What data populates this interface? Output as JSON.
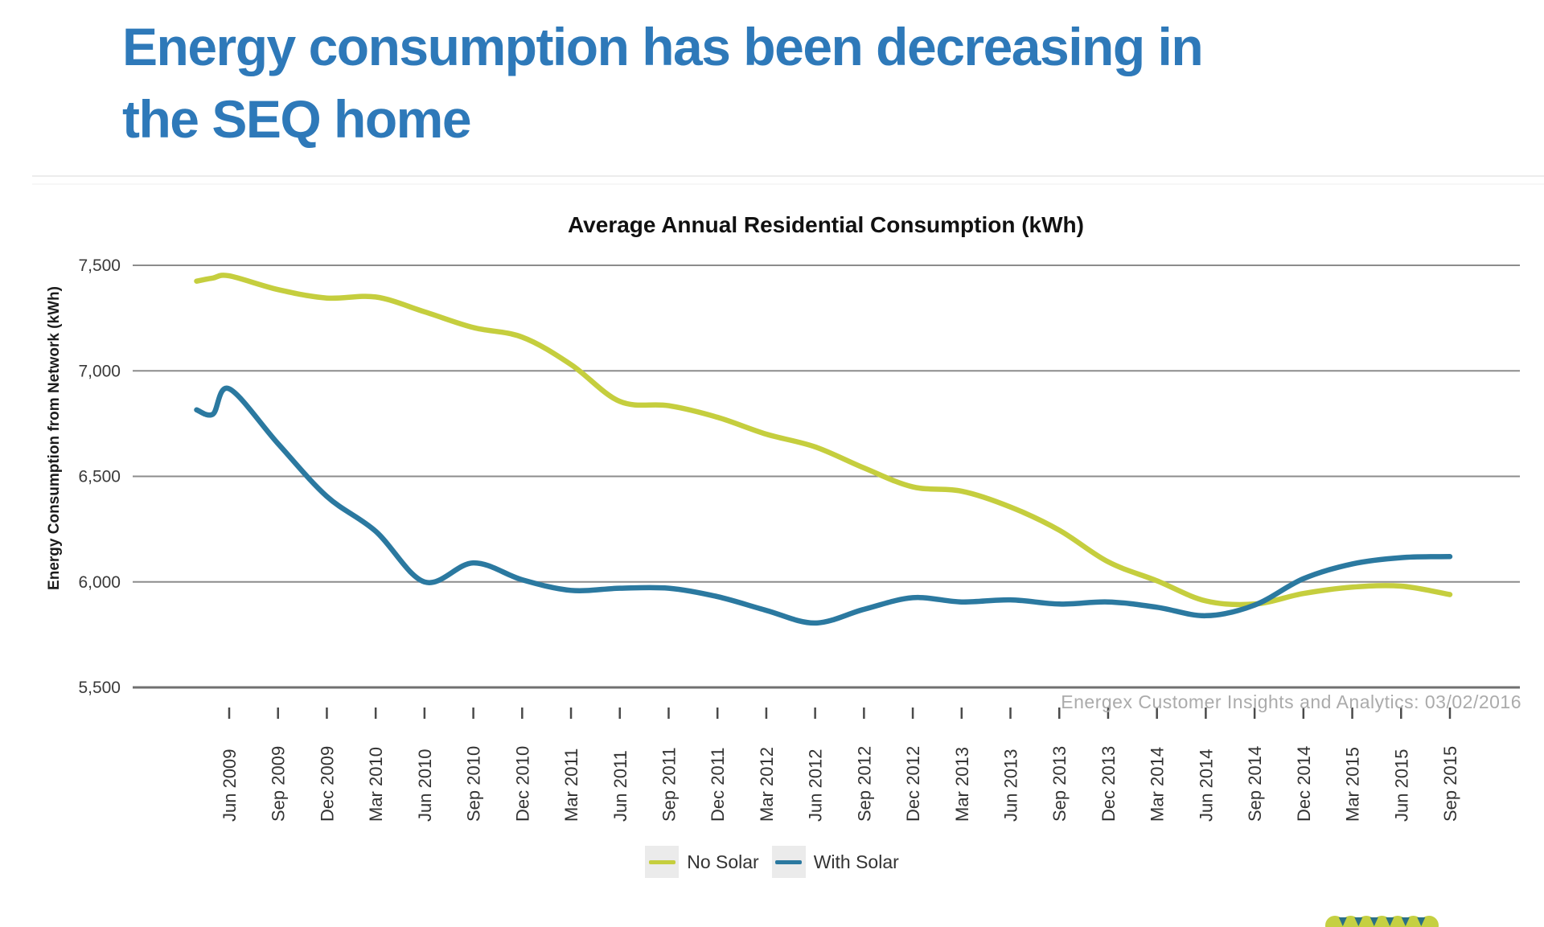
{
  "page": {
    "title_line1": "Energy consumption has been decreasing in",
    "title_line2": "the SEQ home",
    "title_color": "#2E79B9"
  },
  "watermark": "Energex Customer Insights and Analytics: 03/02/2016",
  "chart_data": {
    "type": "line",
    "title": "Average Annual Residential Consumption (kWh)",
    "ylabel": "Energy Consumption from Network (kWh)",
    "xlabel": "",
    "ylim": [
      5500,
      7500
    ],
    "y_ticks": [
      {
        "value": 7500,
        "label": "7,500"
      },
      {
        "value": 7000,
        "label": "7,000"
      },
      {
        "value": 6500,
        "label": "6,500"
      },
      {
        "value": 6000,
        "label": "6,000"
      },
      {
        "value": 5500,
        "label": "5,500"
      }
    ],
    "grid": "horizontal gridlines on",
    "legend_position": "bottom-center",
    "line_style": "smooth",
    "categories": [
      "Jun 2009",
      "Sep 2009",
      "Dec 2009",
      "Mar 2010",
      "Jun 2010",
      "Sep 2010",
      "Dec 2010",
      "Mar 2011",
      "Jun 2011",
      "Sep 2011",
      "Dec 2011",
      "Mar 2012",
      "Jun 2012",
      "Sep 2012",
      "Dec 2012",
      "Mar 2013",
      "Jun 2013",
      "Sep 2013",
      "Dec 2013",
      "Mar 2014",
      "Jun 2014",
      "Sep 2014",
      "Dec 2014",
      "Mar 2015",
      "Jun 2015",
      "Sep 2015"
    ],
    "lead_in": {
      "note": "lines begin two months before the first labeled tick",
      "categories": [
        "Apr 2009",
        "May 2009"
      ],
      "series": {
        "No Solar": [
          7425,
          7440
        ],
        "With Solar": [
          6815,
          6795
        ]
      }
    },
    "series": [
      {
        "name": "No Solar",
        "color": "#C5CE3E",
        "values": [
          7450,
          7385,
          7345,
          7350,
          7280,
          7205,
          7160,
          7030,
          6855,
          6835,
          6780,
          6700,
          6640,
          6540,
          6450,
          6430,
          6355,
          6245,
          6095,
          6005,
          5910,
          5895,
          5945,
          5975,
          5980,
          5940
        ]
      },
      {
        "name": "With Solar",
        "color": "#2B79A0",
        "values": [
          6915,
          6655,
          6405,
          6240,
          6000,
          6090,
          6010,
          5960,
          5970,
          5970,
          5930,
          5865,
          5805,
          5870,
          5925,
          5905,
          5915,
          5895,
          5905,
          5880,
          5840,
          5890,
          6015,
          6085,
          6115,
          6120
        ]
      }
    ]
  },
  "style": {
    "gridline_color": "#8C8C8C",
    "axis_color": "#707070",
    "tick_color": "#4A4A4A",
    "label_color": "#333333",
    "watermark_color": "#ABABAB"
  },
  "logo": {
    "name": "energex-logo-partial",
    "colors": [
      "#C5D042",
      "#2A6F86"
    ]
  }
}
